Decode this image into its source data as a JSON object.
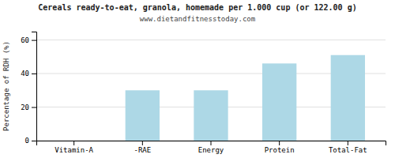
{
  "chart_data": {
    "type": "bar",
    "title": "Cereals ready-to-eat, granola, homemade per 1.000 cup (or 122.00 g)",
    "subtitle": "www.dietandfitnesstoday.com",
    "categories": [
      "Vitamin-A",
      "-RAE",
      "Energy",
      "Protein",
      "Total-Fat"
    ],
    "values": [
      0,
      30,
      30,
      46,
      51
    ],
    "color": "#add8e6",
    "ylabel": "Percentage of RDH (%)",
    "ylim": [
      0,
      65
    ],
    "yticks": [
      0,
      20,
      40,
      60
    ],
    "grid": true
  }
}
